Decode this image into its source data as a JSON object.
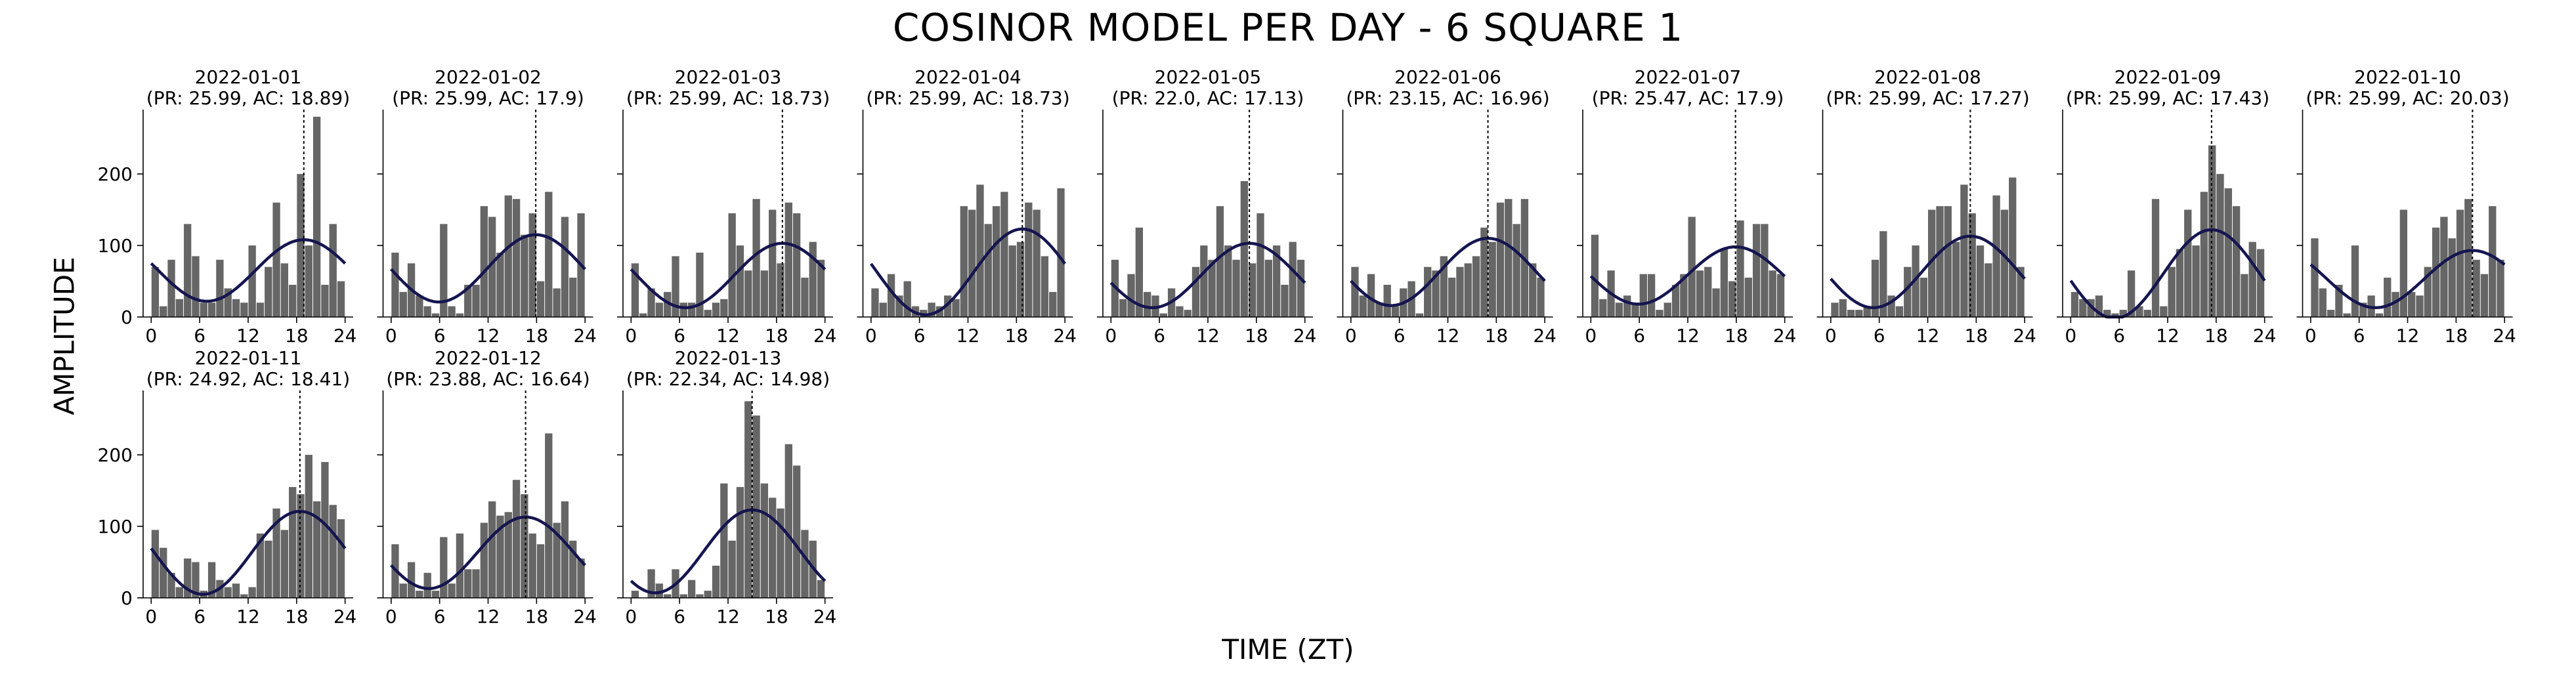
{
  "figure": {
    "title": "COSINOR MODEL PER DAY - 6 SQUARE 1",
    "xlabel": "TIME (ZT)",
    "ylabel": "AMPLITUDE"
  },
  "chart_data": {
    "type": "bar",
    "colors": {
      "bar": "#666666",
      "curve": "#151550",
      "vline": "#000000"
    },
    "x_ticks": [
      0,
      6,
      12,
      18,
      24
    ],
    "y_ticks": [
      0,
      100,
      200
    ],
    "xlim": [
      -1,
      25
    ],
    "ylim": [
      0,
      290
    ],
    "grid": false,
    "panels": [
      {
        "date": "2022-01-01",
        "subtitle": "(PR: 25.99, AC: 18.89)",
        "acrophase": 18.89,
        "mesor": 65,
        "amplitude": 43,
        "values": [
          70,
          15,
          80,
          25,
          130,
          85,
          20,
          20,
          80,
          40,
          25,
          20,
          100,
          20,
          70,
          160,
          75,
          45,
          200,
          100,
          280,
          45,
          130,
          50
        ]
      },
      {
        "date": "2022-01-02",
        "subtitle": "(PR: 25.99, AC: 17.9)",
        "acrophase": 17.9,
        "mesor": 68,
        "amplitude": 47,
        "values": [
          90,
          35,
          75,
          30,
          15,
          5,
          130,
          15,
          5,
          45,
          45,
          155,
          140,
          90,
          170,
          165,
          115,
          145,
          50,
          175,
          40,
          140,
          55,
          145
        ]
      },
      {
        "date": "2022-01-03",
        "subtitle": "(PR: 25.99, AC: 18.73)",
        "acrophase": 18.73,
        "mesor": 58,
        "amplitude": 45,
        "values": [
          75,
          5,
          40,
          20,
          35,
          85,
          20,
          20,
          90,
          10,
          20,
          25,
          145,
          100,
          65,
          165,
          65,
          150,
          75,
          160,
          145,
          55,
          105,
          80
        ]
      },
      {
        "date": "2022-01-04",
        "subtitle": "(PR: 25.99, AC: 18.73)",
        "acrophase": 18.73,
        "mesor": 63,
        "amplitude": 60,
        "values": [
          40,
          20,
          60,
          30,
          50,
          15,
          10,
          20,
          15,
          30,
          25,
          155,
          150,
          185,
          130,
          155,
          175,
          100,
          105,
          160,
          150,
          85,
          35,
          180
        ]
      },
      {
        "date": "2022-01-05",
        "subtitle": "(PR: 22.0, AC: 17.13)",
        "acrophase": 17.13,
        "mesor": 58,
        "amplitude": 45,
        "values": [
          80,
          25,
          60,
          125,
          35,
          30,
          5,
          40,
          15,
          10,
          70,
          100,
          80,
          155,
          100,
          80,
          190,
          75,
          145,
          80,
          100,
          45,
          105,
          80
        ]
      },
      {
        "date": "2022-01-06",
        "subtitle": "(PR: 23.15, AC: 16.96)",
        "acrophase": 16.96,
        "mesor": 63,
        "amplitude": 47,
        "values": [
          70,
          30,
          60,
          20,
          45,
          15,
          40,
          50,
          5,
          70,
          65,
          85,
          55,
          70,
          75,
          85,
          125,
          105,
          160,
          165,
          130,
          165,
          75,
          55
        ]
      },
      {
        "date": "2022-01-07",
        "subtitle": "(PR: 25.47, AC: 17.9)",
        "acrophase": 17.9,
        "mesor": 58,
        "amplitude": 40,
        "values": [
          115,
          25,
          65,
          20,
          30,
          20,
          60,
          60,
          10,
          20,
          45,
          60,
          140,
          65,
          70,
          40,
          95,
          50,
          135,
          55,
          130,
          130,
          65,
          60
        ]
      },
      {
        "date": "2022-01-08",
        "subtitle": "(PR: 25.99, AC: 17.27)",
        "acrophase": 17.27,
        "mesor": 63,
        "amplitude": 50,
        "values": [
          20,
          25,
          10,
          10,
          15,
          80,
          120,
          30,
          15,
          70,
          100,
          55,
          150,
          155,
          155,
          105,
          185,
          145,
          100,
          75,
          170,
          150,
          195,
          70
        ]
      },
      {
        "date": "2022-01-09",
        "subtitle": "(PR: 25.99, AC: 17.43)",
        "acrophase": 17.43,
        "mesor": 60,
        "amplitude": 62,
        "values": [
          35,
          25,
          25,
          30,
          10,
          5,
          10,
          65,
          15,
          10,
          165,
          15,
          70,
          95,
          150,
          100,
          175,
          240,
          200,
          180,
          155,
          60,
          105,
          95
        ]
      },
      {
        "date": "2022-01-10",
        "subtitle": "(PR: 25.99, AC: 20.03)",
        "acrophase": 20.03,
        "mesor": 53,
        "amplitude": 40,
        "values": [
          110,
          40,
          10,
          45,
          5,
          100,
          20,
          30,
          5,
          55,
          35,
          150,
          35,
          30,
          70,
          125,
          140,
          110,
          150,
          165,
          80,
          60,
          155,
          80
        ]
      },
      {
        "date": "2022-01-11",
        "subtitle": "(PR: 24.92, AC: 18.41)",
        "acrophase": 18.41,
        "mesor": 63,
        "amplitude": 58,
        "values": [
          95,
          70,
          35,
          15,
          55,
          50,
          10,
          50,
          25,
          15,
          20,
          5,
          15,
          90,
          80,
          125,
          95,
          155,
          145,
          200,
          135,
          190,
          130,
          110
        ]
      },
      {
        "date": "2022-01-12",
        "subtitle": "(PR: 23.88, AC: 16.64)",
        "acrophase": 16.64,
        "mesor": 63,
        "amplitude": 50,
        "values": [
          75,
          20,
          50,
          10,
          35,
          10,
          85,
          20,
          90,
          40,
          40,
          105,
          135,
          115,
          120,
          165,
          145,
          90,
          75,
          230,
          105,
          135,
          80,
          55
        ]
      },
      {
        "date": "2022-01-13",
        "subtitle": "(PR: 22.34, AC: 14.98)",
        "acrophase": 14.98,
        "mesor": 65,
        "amplitude": 58,
        "values": [
          10,
          0,
          40,
          20,
          5,
          40,
          5,
          25,
          5,
          10,
          45,
          160,
          80,
          155,
          275,
          255,
          160,
          140,
          125,
          215,
          185,
          95,
          80,
          25
        ]
      }
    ]
  }
}
